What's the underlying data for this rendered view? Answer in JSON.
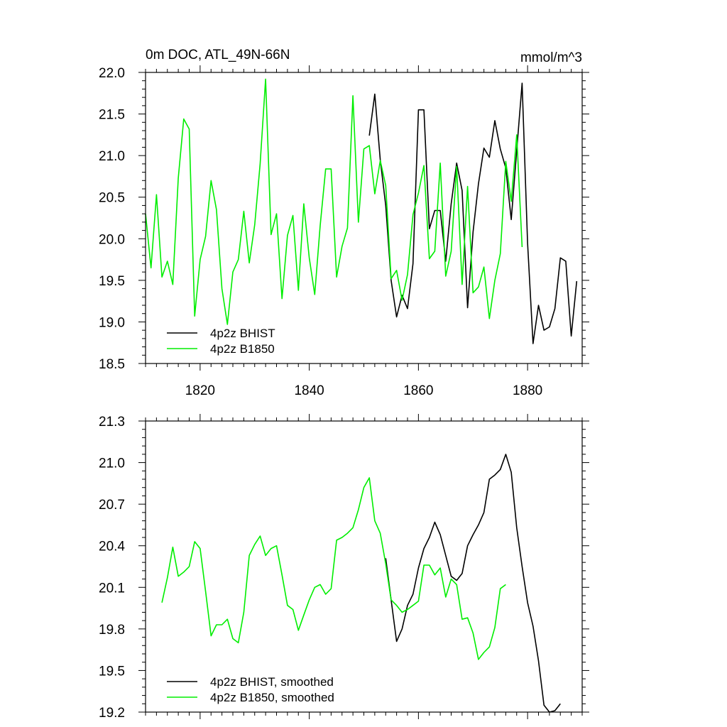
{
  "chart_data": [
    {
      "type": "line",
      "title": "0m DOC, ATL_49N-66N",
      "units": "mmol/m^3",
      "xlim": [
        1810,
        1890
      ],
      "ylim": [
        18.5,
        22.0
      ],
      "xticks": [
        1820,
        1840,
        1860,
        1880
      ],
      "xtick_labels": [
        "1820",
        "1840",
        "1860",
        "1880"
      ],
      "yticks": [
        18.5,
        19.0,
        19.5,
        20.0,
        20.5,
        21.0,
        21.5,
        22.0
      ],
      "ytick_labels": [
        "18.5",
        "19.0",
        "19.5",
        "20.0",
        "20.5",
        "21.0",
        "21.5",
        "22.0"
      ],
      "grid": false,
      "legend_position": "bottom-left",
      "series": [
        {
          "name": "4p2z BHIST",
          "color": "#000000",
          "x": [
            1851,
            1852,
            1853,
            1854,
            1855,
            1856,
            1857,
            1858,
            1859,
            1860,
            1861,
            1862,
            1863,
            1864,
            1865,
            1866,
            1867,
            1868,
            1869,
            1870,
            1871,
            1872,
            1873,
            1874,
            1875,
            1876,
            1877,
            1878,
            1879,
            1880,
            1881,
            1882,
            1883,
            1884,
            1885,
            1886,
            1887,
            1888,
            1889
          ],
          "y": [
            21.24,
            21.74,
            20.95,
            20.4,
            19.5,
            19.06,
            19.32,
            19.16,
            19.7,
            21.55,
            21.55,
            20.12,
            20.34,
            20.34,
            19.73,
            20.42,
            20.91,
            20.58,
            19.17,
            20.08,
            20.66,
            21.09,
            20.98,
            21.42,
            21.08,
            20.85,
            20.23,
            21.06,
            21.87,
            19.95,
            18.74,
            19.2,
            18.9,
            18.94,
            19.16,
            19.77,
            19.73,
            18.83,
            19.49
          ]
        },
        {
          "name": "4p2z B1850",
          "color": "#00ee00",
          "x": [
            1810,
            1811,
            1812,
            1813,
            1814,
            1815,
            1816,
            1817,
            1818,
            1819,
            1820,
            1821,
            1822,
            1823,
            1824,
            1825,
            1826,
            1827,
            1828,
            1829,
            1830,
            1831,
            1832,
            1833,
            1834,
            1835,
            1836,
            1837,
            1838,
            1839,
            1840,
            1841,
            1842,
            1843,
            1844,
            1845,
            1846,
            1847,
            1848,
            1849,
            1850,
            1851,
            1852,
            1853,
            1854,
            1855,
            1856,
            1857,
            1858,
            1859,
            1860,
            1861,
            1862,
            1863,
            1864,
            1865,
            1866,
            1867,
            1868,
            1869,
            1870,
            1871,
            1872,
            1873,
            1874,
            1875,
            1876,
            1877,
            1878,
            1879
          ],
          "y": [
            20.3,
            19.65,
            20.53,
            19.54,
            19.73,
            19.45,
            20.73,
            21.44,
            21.32,
            19.07,
            19.75,
            20.03,
            20.7,
            20.35,
            19.4,
            18.97,
            19.6,
            19.75,
            20.33,
            19.71,
            20.17,
            20.9,
            21.92,
            20.05,
            20.3,
            19.28,
            20.04,
            20.28,
            19.38,
            20.42,
            19.77,
            19.33,
            20.16,
            20.84,
            20.84,
            19.54,
            19.91,
            20.13,
            21.72,
            20.2,
            21.08,
            21.12,
            20.54,
            20.94,
            20.64,
            19.52,
            19.62,
            19.26,
            19.57,
            20.29,
            20.55,
            20.88,
            19.76,
            19.85,
            20.91,
            19.55,
            19.85,
            20.87,
            19.45,
            20.63,
            19.35,
            19.42,
            19.66,
            19.04,
            19.5,
            19.82,
            20.93,
            20.45,
            21.25,
            19.9
          ]
        }
      ]
    },
    {
      "type": "line",
      "title": "",
      "xlim": [
        1810,
        1890
      ],
      "ylim": [
        19.2,
        21.3
      ],
      "xticks": [
        1820,
        1840,
        1860,
        1880
      ],
      "yticks": [
        19.2,
        19.5,
        19.8,
        20.1,
        20.4,
        20.7,
        21.0,
        21.3
      ],
      "ytick_labels": [
        "19.2",
        "19.5",
        "19.8",
        "20.1",
        "20.4",
        "20.7",
        "21.0",
        "21.3"
      ],
      "grid": false,
      "legend_position": "bottom-left",
      "series": [
        {
          "name": "4p2z BHIST, smoothed",
          "color": "#000000",
          "x": [
            1854,
            1855,
            1856,
            1857,
            1858,
            1859,
            1860,
            1861,
            1862,
            1863,
            1864,
            1865,
            1866,
            1867,
            1868,
            1869,
            1870,
            1871,
            1872,
            1873,
            1874,
            1875,
            1876,
            1877,
            1878,
            1879,
            1880,
            1881,
            1882,
            1883,
            1884,
            1885,
            1886
          ],
          "y": [
            20.31,
            20.01,
            19.71,
            19.8,
            19.97,
            20.05,
            20.24,
            20.38,
            20.46,
            20.57,
            20.48,
            20.33,
            20.18,
            20.15,
            20.2,
            20.4,
            20.48,
            20.55,
            20.64,
            20.88,
            20.91,
            20.95,
            21.06,
            20.93,
            20.53,
            20.25,
            19.99,
            19.82,
            19.57,
            19.25,
            19.2,
            19.21,
            19.26
          ]
        },
        {
          "name": "4p2z B1850, smoothed",
          "color": "#00ee00",
          "x": [
            1813,
            1814,
            1815,
            1816,
            1817,
            1818,
            1819,
            1820,
            1821,
            1822,
            1823,
            1824,
            1825,
            1826,
            1827,
            1828,
            1829,
            1830,
            1831,
            1832,
            1833,
            1834,
            1835,
            1836,
            1837,
            1838,
            1839,
            1840,
            1841,
            1842,
            1843,
            1844,
            1845,
            1846,
            1847,
            1848,
            1849,
            1850,
            1851,
            1852,
            1853,
            1854,
            1855,
            1856,
            1857,
            1858,
            1859,
            1860,
            1861,
            1862,
            1863,
            1864,
            1865,
            1866,
            1867,
            1868,
            1869,
            1870,
            1871,
            1872,
            1873,
            1874,
            1875,
            1876,
            1877
          ],
          "y": [
            19.99,
            20.17,
            20.39,
            20.18,
            20.21,
            20.25,
            20.43,
            20.38,
            20.07,
            19.75,
            19.83,
            19.83,
            19.87,
            19.73,
            19.7,
            19.92,
            20.33,
            20.41,
            20.47,
            20.33,
            20.38,
            20.4,
            20.19,
            19.97,
            19.94,
            19.79,
            19.9,
            20.01,
            20.1,
            20.12,
            20.05,
            20.09,
            20.44,
            20.46,
            20.49,
            20.53,
            20.66,
            20.82,
            20.89,
            20.58,
            20.49,
            20.27,
            20.01,
            19.97,
            19.92,
            19.94,
            19.97,
            20.0,
            20.26,
            20.26,
            20.19,
            20.24,
            20.03,
            20.16,
            20.12,
            19.87,
            19.88,
            19.77,
            19.58,
            19.63,
            19.67,
            19.81,
            20.09,
            20.12,
            null
          ]
        }
      ]
    }
  ]
}
